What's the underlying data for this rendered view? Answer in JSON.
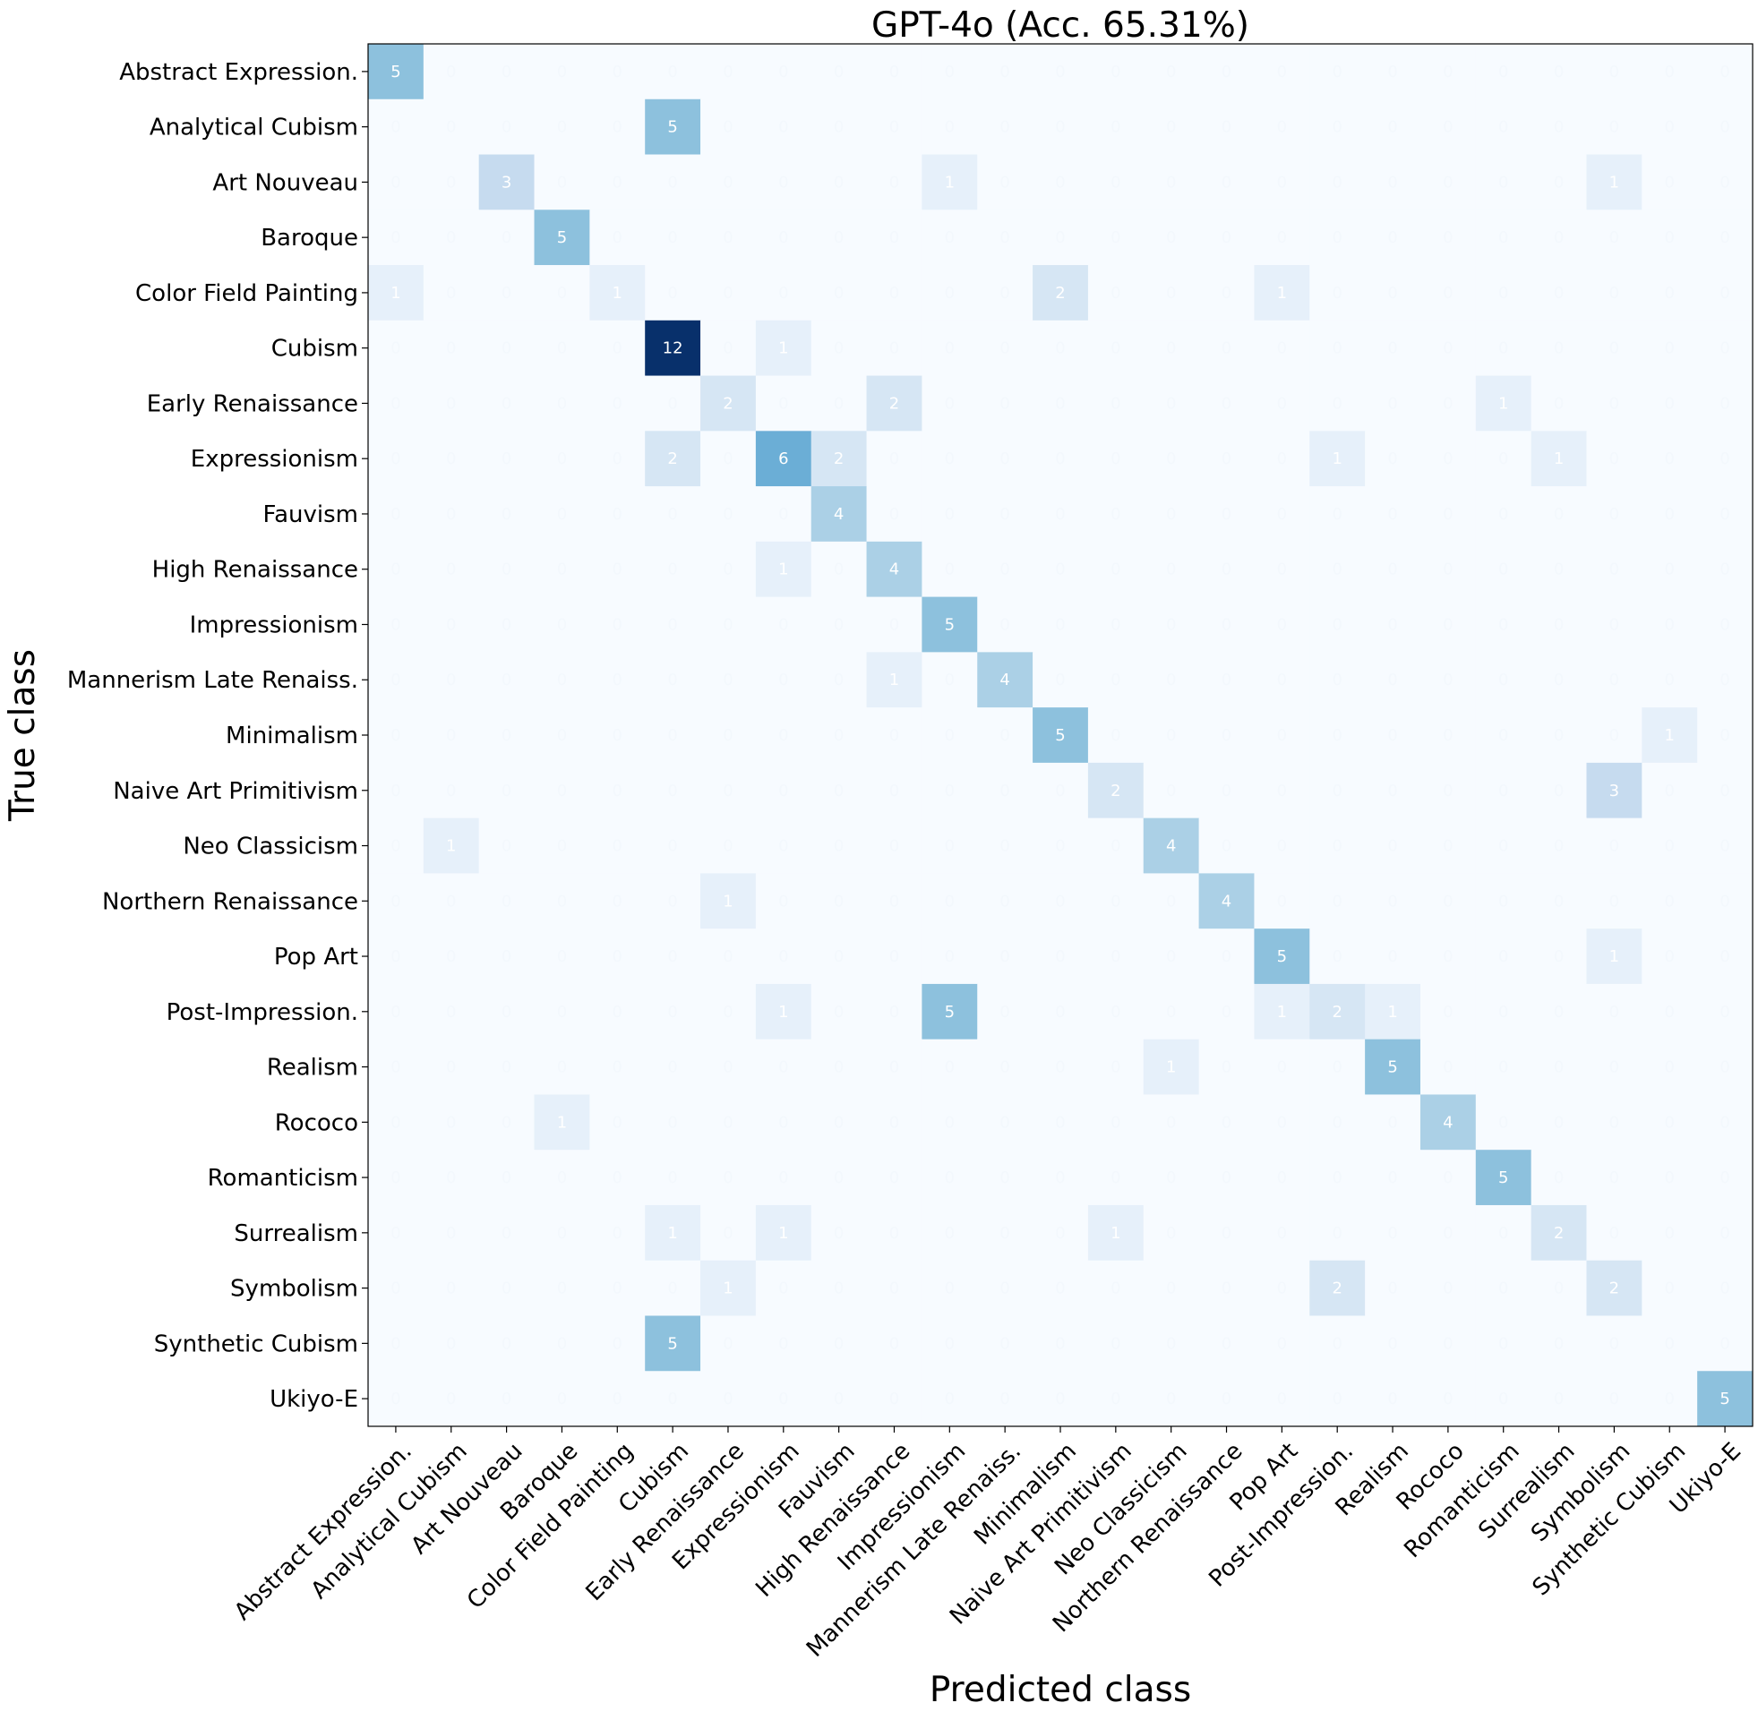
{
  "chart_data": {
    "type": "heatmap",
    "title": "GPT-4o (Acc. 65.31%)",
    "xlabel": "Predicted class",
    "ylabel": "True class",
    "colormap": "Blues",
    "value_range": [
      0,
      12
    ],
    "grid": false,
    "classes": [
      "Abstract Expression.",
      "Analytical Cubism",
      "Art Nouveau",
      "Baroque",
      "Color Field Painting",
      "Cubism",
      "Early Renaissance",
      "Expressionism",
      "Fauvism",
      "High Renaissance",
      "Impressionism",
      "Mannerism Late Renaiss.",
      "Minimalism",
      "Naive Art Primitivism",
      "Neo Classicism",
      "Northern Renaissance",
      "Pop Art",
      "Post-Impression.",
      "Realism",
      "Rococo",
      "Romanticism",
      "Surrealism",
      "Symbolism",
      "Synthetic Cubism",
      "Ukiyo-E"
    ],
    "matrix": [
      [
        5,
        0,
        0,
        0,
        0,
        0,
        0,
        0,
        0,
        0,
        0,
        0,
        0,
        0,
        0,
        0,
        0,
        0,
        0,
        0,
        0,
        0,
        0,
        0,
        0
      ],
      [
        0,
        0,
        0,
        0,
        0,
        5,
        0,
        0,
        0,
        0,
        0,
        0,
        0,
        0,
        0,
        0,
        0,
        0,
        0,
        0,
        0,
        0,
        0,
        0,
        0
      ],
      [
        0,
        0,
        3,
        0,
        0,
        0,
        0,
        0,
        0,
        0,
        1,
        0,
        0,
        0,
        0,
        0,
        0,
        0,
        0,
        0,
        0,
        0,
        1,
        0,
        0
      ],
      [
        0,
        0,
        0,
        5,
        0,
        0,
        0,
        0,
        0,
        0,
        0,
        0,
        0,
        0,
        0,
        0,
        0,
        0,
        0,
        0,
        0,
        0,
        0,
        0,
        0
      ],
      [
        1,
        0,
        0,
        0,
        1,
        0,
        0,
        0,
        0,
        0,
        0,
        0,
        2,
        0,
        0,
        0,
        1,
        0,
        0,
        0,
        0,
        0,
        0,
        0,
        0
      ],
      [
        0,
        0,
        0,
        0,
        0,
        12,
        0,
        1,
        0,
        0,
        0,
        0,
        0,
        0,
        0,
        0,
        0,
        0,
        0,
        0,
        0,
        0,
        0,
        0,
        0
      ],
      [
        0,
        0,
        0,
        0,
        0,
        0,
        2,
        0,
        0,
        2,
        0,
        0,
        0,
        0,
        0,
        0,
        0,
        0,
        0,
        0,
        1,
        0,
        0,
        0,
        0
      ],
      [
        0,
        0,
        0,
        0,
        0,
        2,
        0,
        6,
        2,
        0,
        0,
        0,
        0,
        0,
        0,
        0,
        0,
        1,
        0,
        0,
        0,
        1,
        0,
        0,
        0
      ],
      [
        0,
        0,
        0,
        0,
        0,
        0,
        0,
        0,
        4,
        0,
        0,
        0,
        0,
        0,
        0,
        0,
        0,
        0,
        0,
        0,
        0,
        0,
        0,
        0,
        0
      ],
      [
        0,
        0,
        0,
        0,
        0,
        0,
        0,
        1,
        0,
        4,
        0,
        0,
        0,
        0,
        0,
        0,
        0,
        0,
        0,
        0,
        0,
        0,
        0,
        0,
        0
      ],
      [
        0,
        0,
        0,
        0,
        0,
        0,
        0,
        0,
        0,
        0,
        5,
        0,
        0,
        0,
        0,
        0,
        0,
        0,
        0,
        0,
        0,
        0,
        0,
        0,
        0
      ],
      [
        0,
        0,
        0,
        0,
        0,
        0,
        0,
        0,
        0,
        1,
        0,
        4,
        0,
        0,
        0,
        0,
        0,
        0,
        0,
        0,
        0,
        0,
        0,
        0,
        0
      ],
      [
        0,
        0,
        0,
        0,
        0,
        0,
        0,
        0,
        0,
        0,
        0,
        0,
        5,
        0,
        0,
        0,
        0,
        0,
        0,
        0,
        0,
        0,
        0,
        1,
        0
      ],
      [
        0,
        0,
        0,
        0,
        0,
        0,
        0,
        0,
        0,
        0,
        0,
        0,
        0,
        2,
        0,
        0,
        0,
        0,
        0,
        0,
        0,
        0,
        3,
        0,
        0
      ],
      [
        0,
        1,
        0,
        0,
        0,
        0,
        0,
        0,
        0,
        0,
        0,
        0,
        0,
        0,
        4,
        0,
        0,
        0,
        0,
        0,
        0,
        0,
        0,
        0,
        0
      ],
      [
        0,
        0,
        0,
        0,
        0,
        0,
        1,
        0,
        0,
        0,
        0,
        0,
        0,
        0,
        0,
        4,
        0,
        0,
        0,
        0,
        0,
        0,
        0,
        0,
        0
      ],
      [
        0,
        0,
        0,
        0,
        0,
        0,
        0,
        0,
        0,
        0,
        0,
        0,
        0,
        0,
        0,
        0,
        5,
        0,
        0,
        0,
        0,
        0,
        1,
        0,
        0
      ],
      [
        0,
        0,
        0,
        0,
        0,
        0,
        0,
        1,
        0,
        0,
        5,
        0,
        0,
        0,
        0,
        0,
        1,
        2,
        1,
        0,
        0,
        0,
        0,
        0,
        0
      ],
      [
        0,
        0,
        0,
        0,
        0,
        0,
        0,
        0,
        0,
        0,
        0,
        0,
        0,
        0,
        1,
        0,
        0,
        0,
        5,
        0,
        0,
        0,
        0,
        0,
        0
      ],
      [
        0,
        0,
        0,
        1,
        0,
        0,
        0,
        0,
        0,
        0,
        0,
        0,
        0,
        0,
        0,
        0,
        0,
        0,
        0,
        4,
        0,
        0,
        0,
        0,
        0
      ],
      [
        0,
        0,
        0,
        0,
        0,
        0,
        0,
        0,
        0,
        0,
        0,
        0,
        0,
        0,
        0,
        0,
        0,
        0,
        0,
        0,
        5,
        0,
        0,
        0,
        0
      ],
      [
        0,
        0,
        0,
        0,
        0,
        1,
        0,
        1,
        0,
        0,
        0,
        0,
        0,
        1,
        0,
        0,
        0,
        0,
        0,
        0,
        0,
        2,
        0,
        0,
        0
      ],
      [
        0,
        0,
        0,
        0,
        0,
        0,
        1,
        0,
        0,
        0,
        0,
        0,
        0,
        0,
        0,
        0,
        0,
        2,
        0,
        0,
        0,
        0,
        2,
        0,
        0
      ],
      [
        0,
        0,
        0,
        0,
        0,
        5,
        0,
        0,
        0,
        0,
        0,
        0,
        0,
        0,
        0,
        0,
        0,
        0,
        0,
        0,
        0,
        0,
        0,
        0,
        0
      ],
      [
        0,
        0,
        0,
        0,
        0,
        0,
        0,
        0,
        0,
        0,
        0,
        0,
        0,
        0,
        0,
        0,
        0,
        0,
        0,
        0,
        0,
        0,
        0,
        0,
        5
      ]
    ]
  }
}
